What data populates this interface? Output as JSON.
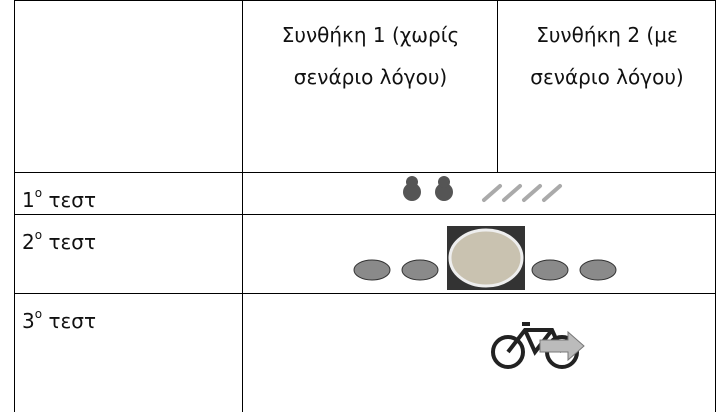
{
  "table": {
    "header": [
      "",
      "Συνθήκη 1 (χωρίς σενάριο λόγου)",
      "Συνθήκη 2 (με σενάριο λόγου)"
    ],
    "rows": [
      {
        "num": "1",
        "sup": "o",
        "text": "τεστ"
      },
      {
        "num": "2",
        "sup": "o",
        "text": "τεστ"
      },
      {
        "num": "3",
        "sup": "o",
        "text": "τεστ"
      }
    ]
  }
}
